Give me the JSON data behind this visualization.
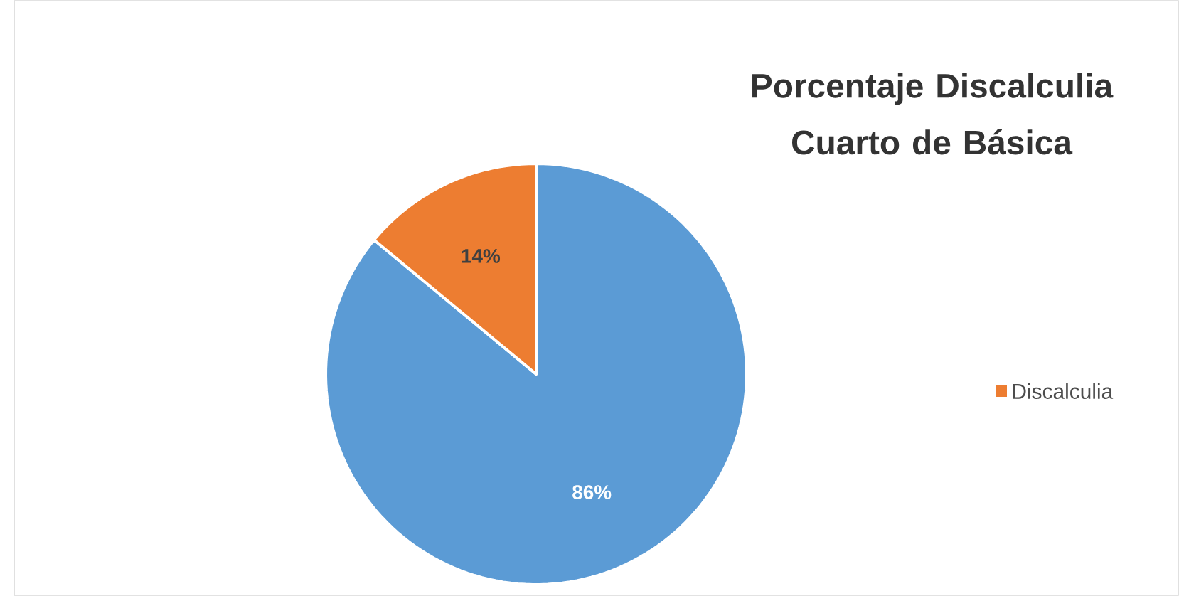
{
  "chart_data": {
    "type": "pie",
    "title": "Porcentaje Discalculia Cuarto de Básica",
    "categories": [
      null,
      "Discalculia"
    ],
    "values": [
      86,
      14
    ],
    "colors": [
      "#5b9bd5",
      "#ed7d31"
    ],
    "value_labels": [
      "86%",
      "14%"
    ],
    "legend": "right"
  }
}
